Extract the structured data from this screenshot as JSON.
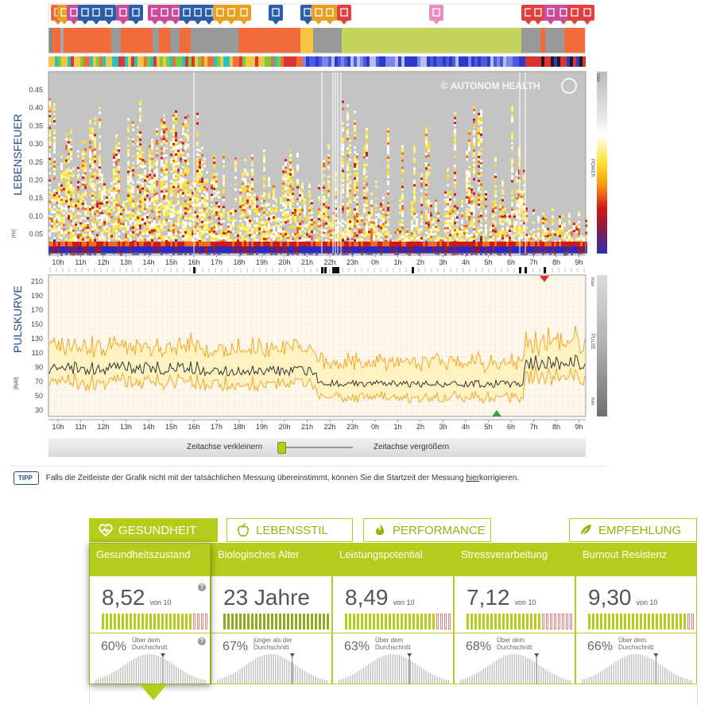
{
  "heatmap": {
    "title": "LEBENSFEUER",
    "unit": "[Hz]",
    "watermark": "© AUTONOM HEALTH",
    "yticks": [
      "0.45",
      "0.40",
      "0.35",
      "0.30",
      "0.25",
      "0.20",
      "0.15",
      "0.10",
      "0.05"
    ],
    "legend_label": "POWER",
    "legend_min": "min",
    "legend_max": "max"
  },
  "pulse": {
    "title": "PULSKURVE",
    "unit": "[BpM]",
    "yticks": [
      "210",
      "190",
      "170",
      "150",
      "130",
      "110",
      "90",
      "70",
      "50",
      "30"
    ],
    "legend_label": "PULSE",
    "legend_min": "min",
    "legend_max": "max"
  },
  "time_axis": [
    "10h",
    "11h",
    "12h",
    "13h",
    "14h",
    "15h",
    "16h",
    "17h",
    "18h",
    "19h",
    "20h",
    "21h",
    "22h",
    "23h",
    "0h",
    "1h",
    "2h",
    "3h",
    "4h",
    "5h",
    "6h",
    "7h",
    "8h",
    "9h"
  ],
  "zoom": {
    "out_label": "Zeitachse verkleinern",
    "in_label": "Zeitachse vergrößern"
  },
  "tip": {
    "badge": "TIPP",
    "text_before": "Falls die Zeitleiste der Grafik nicht mit der tatsächlichen Messung übereinstimmt, können Sie die Startzeit der Messung ",
    "link": "hier",
    "text_after": " korrigieren."
  },
  "tabs": [
    {
      "label": "GESUNDHEIT",
      "icon": "heart-pulse-icon",
      "active": true
    },
    {
      "label": "LEBENSSTIL",
      "icon": "apple-icon",
      "active": false
    },
    {
      "label": "PERFORMANCE",
      "icon": "flame-icon",
      "active": false
    },
    {
      "label": "EMPFEHLUNG",
      "icon": "leaf-icon",
      "active": false
    }
  ],
  "cards": [
    {
      "title": "Gesundheitszustand",
      "score": "8,52",
      "von": "von 10",
      "filled": 0.852,
      "pct": "60%",
      "cmp": "Über dem Durchschnitt",
      "marker": 0.6,
      "help": "?"
    },
    {
      "title": "Biologisches Alter",
      "score": "23 Jahre",
      "von": "",
      "filled": 1.0,
      "pct": "67%",
      "cmp": "jünger als der Durchschnitt",
      "marker": 0.67,
      "help": ""
    },
    {
      "title": "Leistungspotential",
      "score": "8,49",
      "von": "von 10",
      "filled": 0.849,
      "pct": "63%",
      "cmp": "Über dem Durchschnitt",
      "marker": 0.63,
      "help": ""
    },
    {
      "title": "Stressverarbeitung",
      "score": "7,12",
      "von": "von 10",
      "filled": 0.712,
      "pct": "68%",
      "cmp": "Über dem Durchschnitt",
      "marker": 0.68,
      "help": ""
    },
    {
      "title": "Burnout Resistenz",
      "score": "9,30",
      "von": "von 10",
      "filled": 0.93,
      "pct": "66%",
      "cmp": "Über dem Durchschnitt",
      "marker": 0.66,
      "help": ""
    }
  ],
  "colors": {
    "accent": "#b5cc1c",
    "title_blue": "#1a4f8f",
    "curve_orange": "#f5a623"
  }
}
